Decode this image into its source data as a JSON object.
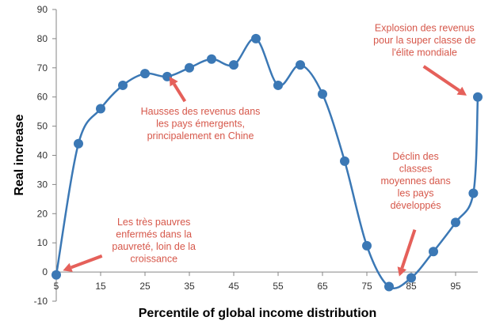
{
  "chart_data": {
    "type": "line",
    "xlabel": "Percentile of global income distribution",
    "ylabel": "Real increase",
    "xlim": [
      5,
      100
    ],
    "ylim": [
      -10,
      90
    ],
    "x_ticks": [
      "5",
      "15",
      "25",
      "35",
      "45",
      "55",
      "65",
      "75",
      "85",
      "95"
    ],
    "y_ticks": [
      "-10",
      "0",
      "10",
      "20",
      "30",
      "40",
      "50",
      "60",
      "70",
      "80",
      "90"
    ],
    "grid": false,
    "series": [
      {
        "x": [
          5,
          10,
          15,
          20,
          25,
          30,
          35,
          40,
          45,
          50,
          55,
          60,
          65,
          70,
          75,
          80,
          85,
          90,
          95,
          99,
          100
        ],
        "y": [
          -1,
          44,
          56,
          64,
          68,
          67,
          70,
          73,
          71,
          80,
          64,
          71,
          61,
          38,
          9,
          -5,
          -2,
          7,
          17,
          27,
          60
        ],
        "color": "#3b78b5"
      }
    ],
    "annotations": [
      {
        "lines": [
          "Explosion des revenus",
          "pour la super classe de",
          "l'élite mondiale"
        ],
        "anchor": [
          88,
          82.5
        ],
        "arrow": {
          "from": [
            87.8,
            70.5
          ],
          "to": [
            97.5,
            60.5
          ]
        }
      },
      {
        "lines": [
          "Hausses des revenus dans",
          "les pays émergents,",
          "principalement en Chine"
        ],
        "anchor": [
          37.5,
          54
        ],
        "arrow": {
          "from": [
            34,
            58.5
          ],
          "to": [
            30.5,
            67
          ]
        }
      },
      {
        "lines": [
          "Déclin des",
          "classes",
          "moyennes dans",
          "les pays",
          "développés"
        ],
        "anchor": [
          86,
          38.5
        ],
        "arrow": {
          "from": [
            85.8,
            14.5
          ],
          "to": [
            82.3,
            -1.5
          ]
        }
      },
      {
        "lines": [
          "Les très pauvres",
          "enfermés dans la",
          "pauvreté, loin de la",
          "croissance"
        ],
        "anchor": [
          27,
          16
        ],
        "arrow": {
          "from": [
            15.3,
            5.5
          ],
          "to": [
            6.5,
            0.5
          ]
        }
      }
    ],
    "annotation_color": "#d6574a",
    "arrow_color": "#e5605a"
  }
}
